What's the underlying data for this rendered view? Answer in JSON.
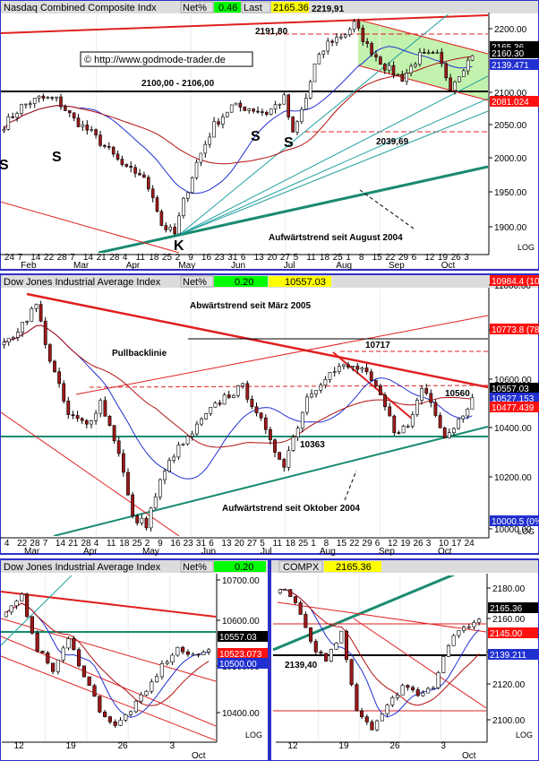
{
  "colors": {
    "frame": "#3030c8",
    "candle_up": "#ffffff",
    "candle_down": "#a01818",
    "ma_short": "#2030d0",
    "ma_long": "#b01010",
    "trend_red": "#e02020",
    "trend_green": "#1a8a70",
    "fan": "#20a0a0",
    "channel_fill": "#b8f0a0",
    "hl_blue": "#2030d0",
    "hl_green": "#1aa050",
    "hl_red": "#ff1010",
    "hl_yellow": "#ffff00",
    "hl_black": "#000000"
  },
  "panels": [
    {
      "id": "nasdaq",
      "title": "Nasdaq Combined Composite Indx",
      "net_label": "Net%",
      "net_value": "0.46",
      "last_label": "Last",
      "last_value": "2165.36",
      "watermark": "© http://www.godmode-trader.de",
      "scale": "LOG",
      "y_ticks": [
        "2200.00",
        "2150.00",
        "2100.00",
        "2050.00",
        "2000.00",
        "1950.00",
        "1900.00"
      ],
      "x_days": [
        "24",
        "7",
        "14",
        "22",
        "28",
        "7",
        "14",
        "21",
        "28",
        "4",
        "11",
        "18",
        "25",
        "2",
        "9",
        "16",
        "23",
        "31",
        "6",
        "13",
        "20",
        "27",
        "5",
        "11",
        "18",
        "25",
        "1",
        "8",
        "15",
        "22",
        "29",
        "6",
        "12",
        "19",
        "26",
        "3"
      ],
      "x_months": [
        "Feb",
        "Mar",
        "Apr",
        "May",
        "Jun",
        "Jul",
        "Aug",
        "Sep",
        "Oct"
      ],
      "price_labels": [
        {
          "text": "2165.36",
          "color": "hl_black"
        },
        {
          "text": "2160.30",
          "color": "hl_black"
        },
        {
          "text": "2139.471",
          "color": "hl_blue"
        },
        {
          "text": "2081.024",
          "color": "hl_red"
        }
      ],
      "annotations": [
        {
          "id": "resist",
          "text": "2191,80"
        },
        {
          "id": "high",
          "text": "2219,91"
        },
        {
          "id": "zone",
          "text": "2100,00 - 2106,00"
        },
        {
          "id": "support",
          "text": "2039,69"
        },
        {
          "id": "trend",
          "text": "Aufwärtstrend seit August 2004"
        },
        {
          "id": "s1",
          "text": "S"
        },
        {
          "id": "s2",
          "text": "S"
        },
        {
          "id": "s3",
          "text": "S"
        },
        {
          "id": "s4",
          "text": "S"
        },
        {
          "id": "k",
          "text": "K"
        }
      ],
      "chart_data": {
        "type": "candlestick",
        "series": "Nasdaq Composite",
        "scale": "log",
        "x_range": [
          "Jan 24",
          "Oct 5"
        ],
        "ylim": [
          1880,
          2230
        ],
        "anchors": [
          [
            0,
            2060
          ],
          [
            4,
            2088
          ],
          [
            8,
            2100
          ],
          [
            12,
            2098
          ],
          [
            16,
            2068
          ],
          [
            20,
            2048
          ],
          [
            24,
            2022
          ],
          [
            28,
            1995
          ],
          [
            31,
            1990
          ],
          [
            34,
            1960
          ],
          [
            36,
            1918
          ],
          [
            39,
            1905
          ],
          [
            41,
            1950
          ],
          [
            44,
            2005
          ],
          [
            48,
            2060
          ],
          [
            52,
            2088
          ],
          [
            56,
            2085
          ],
          [
            60,
            2078
          ],
          [
            64,
            2100
          ],
          [
            66,
            2045
          ],
          [
            69,
            2100
          ],
          [
            71,
            2150
          ],
          [
            74,
            2185
          ],
          [
            78,
            2200
          ],
          [
            80,
            2215
          ],
          [
            83,
            2180
          ],
          [
            87,
            2148
          ],
          [
            91,
            2130
          ],
          [
            95,
            2165
          ],
          [
            99,
            2165
          ],
          [
            102,
            2118
          ],
          [
            105,
            2148
          ],
          [
            107,
            2165
          ]
        ]
      }
    },
    {
      "id": "dow",
      "title": "Dow Jones Industrial Average Index",
      "net_label": "Net%",
      "net_value": "0.20",
      "last_value": "10557.03",
      "scale": "LOG",
      "y_ticks": [
        "11000.00",
        "10800.00",
        "10600.00",
        "10400.00",
        "10200.00",
        "10000.00"
      ],
      "x_days": [
        "4",
        "22",
        "28",
        "7",
        "14",
        "21",
        "28",
        "4",
        "11",
        "18",
        "25",
        "2",
        "9",
        "16",
        "23",
        "31",
        "6",
        "13",
        "20",
        "27",
        "5",
        "11",
        "18",
        "25",
        "1",
        "8",
        "15",
        "22",
        "29",
        "6",
        "12",
        "19",
        "26",
        "3",
        "10",
        "17",
        "24"
      ],
      "x_months": [
        "Mar",
        "Apr",
        "May",
        "Jun",
        "Jul",
        "Aug",
        "Sep",
        "Oct"
      ],
      "price_labels": [
        {
          "text": "10984.4 (100%)",
          "color": "hl_red"
        },
        {
          "text": "10773.8 (78.6%)",
          "color": "hl_red"
        },
        {
          "text": "10557.03",
          "color": "hl_black"
        },
        {
          "text": "10527.153",
          "color": "hl_blue"
        },
        {
          "text": "10477.439",
          "color": "hl_red"
        },
        {
          "text": "10000.5 (0%)",
          "color": "hl_blue"
        }
      ],
      "annotations": [
        {
          "id": "abw",
          "text": "Abwärtstrend seit März 2005"
        },
        {
          "id": "pull",
          "text": "Pullbacklinie"
        },
        {
          "id": "r1",
          "text": "10717"
        },
        {
          "id": "r2",
          "text": "10560"
        },
        {
          "id": "s",
          "text": "10363"
        },
        {
          "id": "auf",
          "text": "Aufwärtstrend seit Oktober 2004"
        }
      ],
      "chart_data": {
        "type": "candlestick",
        "series": "Dow Jones Industrial Average",
        "scale": "log",
        "x_range": [
          "Feb 4",
          "Oct 24"
        ],
        "ylim": [
          9980,
          11030
        ],
        "anchors": [
          [
            0,
            10780
          ],
          [
            4,
            10880
          ],
          [
            7,
            10960
          ],
          [
            10,
            10720
          ],
          [
            14,
            10480
          ],
          [
            18,
            10440
          ],
          [
            21,
            10540
          ],
          [
            25,
            10330
          ],
          [
            28,
            10050
          ],
          [
            31,
            10030
          ],
          [
            34,
            10200
          ],
          [
            37,
            10320
          ],
          [
            40,
            10380
          ],
          [
            44,
            10480
          ],
          [
            48,
            10560
          ],
          [
            52,
            10600
          ],
          [
            55,
            10500
          ],
          [
            58,
            10360
          ],
          [
            61,
            10280
          ],
          [
            64,
            10440
          ],
          [
            66,
            10560
          ],
          [
            70,
            10650
          ],
          [
            74,
            10690
          ],
          [
            78,
            10680
          ],
          [
            82,
            10560
          ],
          [
            85,
            10420
          ],
          [
            88,
            10430
          ],
          [
            91,
            10600
          ],
          [
            93,
            10550
          ],
          [
            96,
            10390
          ],
          [
            99,
            10460
          ],
          [
            102,
            10557
          ]
        ]
      }
    },
    {
      "id": "dow_short",
      "title": "Dow Jones Industrial Average Index",
      "net_label": "Net%",
      "net_value": "0.20",
      "scale": "LOG",
      "y_ticks": [
        "10700.00",
        "10600.00",
        "10500.00",
        "10400.00"
      ],
      "x_days": [
        "12",
        "19",
        "26",
        "3"
      ],
      "x_months": [
        "Oct"
      ],
      "price_labels": [
        {
          "text": "10557.03",
          "color": "hl_black"
        },
        {
          "text": "10523.073",
          "color": "hl_red"
        },
        {
          "text": "10500.00",
          "color": "hl_blue"
        }
      ],
      "chart_data": {
        "type": "candlestick",
        "series": "Dow Jones Industrial Average",
        "scale": "log",
        "x_range": [
          "Sep 8",
          "Oct 6"
        ],
        "ylim": [
          10350,
          10730
        ],
        "anchors": [
          [
            0,
            10640
          ],
          [
            3,
            10680
          ],
          [
            6,
            10560
          ],
          [
            9,
            10510
          ],
          [
            12,
            10580
          ],
          [
            15,
            10500
          ],
          [
            18,
            10420
          ],
          [
            21,
            10380
          ],
          [
            24,
            10420
          ],
          [
            27,
            10460
          ],
          [
            30,
            10520
          ],
          [
            33,
            10560
          ],
          [
            36,
            10540
          ],
          [
            39,
            10557
          ]
        ]
      }
    },
    {
      "id": "compx_short",
      "title": "COMPX",
      "last_value": "2165.36",
      "scale": "LOG",
      "y_ticks": [
        "2180.00",
        "2160.00",
        "2140.00",
        "2120.00",
        "2100.00"
      ],
      "x_days": [
        "12",
        "19",
        "26",
        "3"
      ],
      "x_months": [
        "Oct"
      ],
      "price_labels": [
        {
          "text": "2165.36",
          "color": "hl_black"
        },
        {
          "text": "2145.00",
          "color": "hl_red"
        },
        {
          "text": "2139.211",
          "color": "hl_blue"
        }
      ],
      "annotations": [
        {
          "id": "lvl",
          "text": "2139,40"
        }
      ],
      "chart_data": {
        "type": "candlestick",
        "series": "Nasdaq Composite",
        "scale": "log",
        "x_range": [
          "Sep 8",
          "Oct 6"
        ],
        "ylim": [
          2092,
          2192
        ],
        "anchors": [
          [
            0,
            2185
          ],
          [
            3,
            2175
          ],
          [
            6,
            2150
          ],
          [
            9,
            2140
          ],
          [
            12,
            2158
          ],
          [
            15,
            2110
          ],
          [
            18,
            2100
          ],
          [
            21,
            2112
          ],
          [
            24,
            2125
          ],
          [
            27,
            2120
          ],
          [
            30,
            2125
          ],
          [
            33,
            2150
          ],
          [
            36,
            2160
          ],
          [
            39,
            2165
          ]
        ]
      }
    }
  ]
}
